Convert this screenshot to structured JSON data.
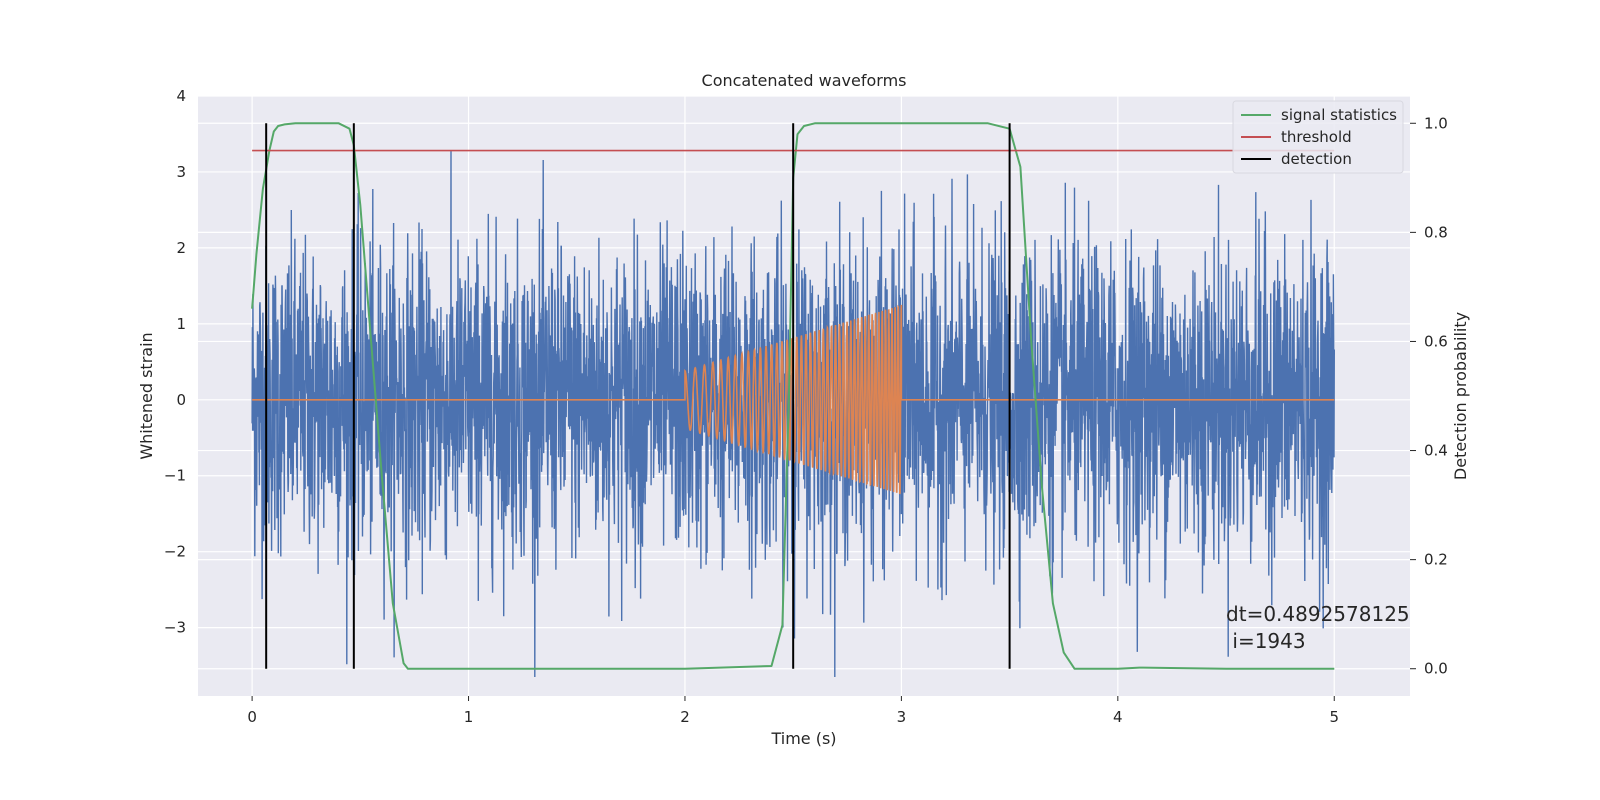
{
  "chart_data": {
    "type": "line",
    "title": "Concatenated waveforms",
    "xlabel": "Time (s)",
    "ylabel_left": "Whitened strain",
    "ylabel_right": "Detection probability",
    "xlim": [
      -0.25,
      5.35
    ],
    "ylim_left": [
      -3.9,
      4.0
    ],
    "ylim_right": [
      -0.05,
      1.05
    ],
    "x_ticks": [
      0,
      1,
      2,
      3,
      4,
      5
    ],
    "y_ticks_left": [
      -3,
      -2,
      -1,
      0,
      1,
      2,
      3,
      4
    ],
    "y_ticks_right": [
      0.0,
      0.2,
      0.4,
      0.6,
      0.8,
      1.0
    ],
    "x_tick_labels": [
      "0",
      "1",
      "2",
      "3",
      "4",
      "5"
    ],
    "y_tick_labels_left": [
      "−3",
      "−2",
      "−1",
      "0",
      "1",
      "2",
      "3",
      "4"
    ],
    "y_tick_labels_right": [
      "0.0",
      "0.2",
      "0.4",
      "0.6",
      "0.8",
      "1.0"
    ],
    "grid": true,
    "legend_position": "top-right",
    "legend": [
      {
        "label": "signal statistics",
        "color": "#55a868"
      },
      {
        "label": "threshold",
        "color": "#c44e52"
      },
      {
        "label": "detection",
        "color": "#000000"
      }
    ],
    "series": [
      {
        "role": "whitened-strain",
        "axis": "left",
        "color": "#4c72b0",
        "x_range": [
          0,
          5
        ],
        "typical_amplitude": 1.0,
        "max_abs": 3.65
      },
      {
        "role": "injected-chirp",
        "axis": "left",
        "color": "#dd8452",
        "x": [
          2.0,
          3.0
        ],
        "amplitude": [
          0.38,
          1.25
        ]
      },
      {
        "name": "signal statistics",
        "axis": "right",
        "color": "#55a868",
        "x": [
          0.0,
          0.02,
          0.05,
          0.08,
          0.1,
          0.12,
          0.15,
          0.2,
          0.3,
          0.4,
          0.45,
          0.47,
          0.5,
          0.55,
          0.6,
          0.65,
          0.7,
          0.72,
          0.8,
          1.0,
          2.0,
          2.4,
          2.45,
          2.48,
          2.5,
          2.52,
          2.55,
          2.6,
          3.0,
          3.4,
          3.5,
          3.55,
          3.6,
          3.65,
          3.7,
          3.75,
          3.8,
          4.0,
          4.1,
          4.5,
          5.0
        ],
        "values": [
          0.66,
          0.76,
          0.88,
          0.95,
          0.985,
          0.995,
          0.998,
          1.0,
          1.0,
          1.0,
          0.99,
          0.96,
          0.85,
          0.6,
          0.35,
          0.12,
          0.01,
          0.0,
          0.0,
          0.0,
          0.0,
          0.005,
          0.08,
          0.5,
          0.9,
          0.98,
          0.995,
          1.0,
          1.0,
          1.0,
          0.99,
          0.92,
          0.6,
          0.33,
          0.12,
          0.03,
          0.0,
          0.0,
          0.002,
          0.0,
          0.0
        ]
      },
      {
        "name": "threshold",
        "axis": "right",
        "color": "#c44e52",
        "x": [
          0,
          5
        ],
        "values": [
          0.95,
          0.95
        ]
      }
    ],
    "detections": [
      0.065,
      0.47,
      2.5,
      3.5
    ],
    "annotation": {
      "line1": "dt=0.4892578125",
      "line2": " i=1943",
      "x": 4.5,
      "y_right": 0.1
    }
  }
}
